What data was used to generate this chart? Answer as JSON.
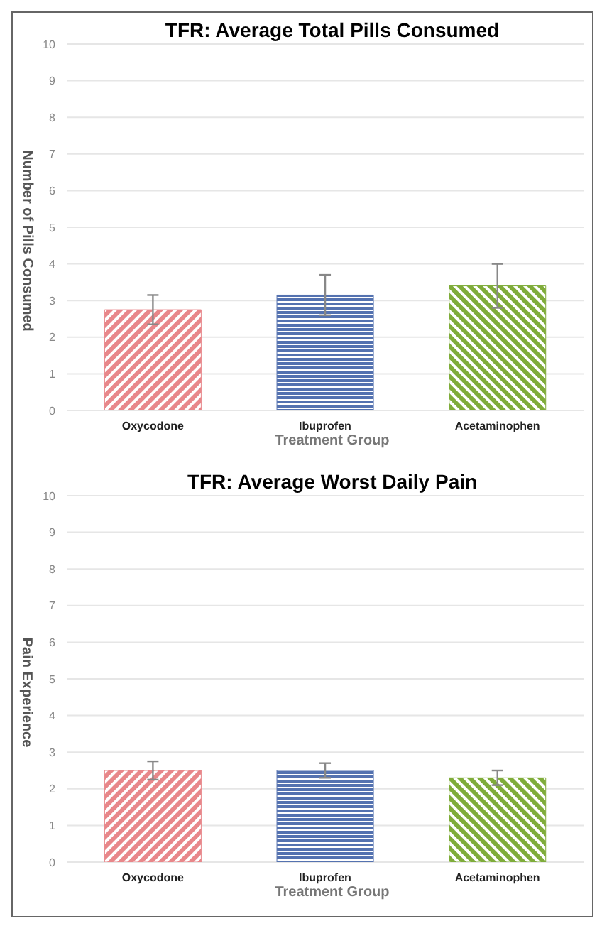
{
  "chart_data": [
    {
      "type": "bar",
      "title": "TFR: Average Total Pills Consumed",
      "xlabel": "Treatment Group",
      "ylabel": "Number of Pills Consumed",
      "categories": [
        "Oxycodone",
        "Ibuprofen",
        "Acetaminophen"
      ],
      "values": [
        2.75,
        3.15,
        3.4
      ],
      "errors": [
        0.4,
        0.55,
        0.6
      ],
      "colors": [
        "#e8878a",
        "#5472b0",
        "#7fac3a"
      ],
      "ylim": [
        0,
        10
      ],
      "yticks": [
        0,
        1,
        2,
        3,
        4,
        5,
        6,
        7,
        8,
        9,
        10
      ],
      "grid": "y",
      "legend": false
    },
    {
      "type": "bar",
      "title": "TFR: Average Worst Daily Pain",
      "xlabel": "Treatment Group",
      "ylabel": "Pain Experience",
      "categories": [
        "Oxycodone",
        "Ibuprofen",
        "Acetaminophen"
      ],
      "values": [
        2.5,
        2.5,
        2.3
      ],
      "errors": [
        0.25,
        0.2,
        0.2
      ],
      "colors": [
        "#e8878a",
        "#5472b0",
        "#7fac3a"
      ],
      "ylim": [
        0,
        10
      ],
      "yticks": [
        0,
        1,
        2,
        3,
        4,
        5,
        6,
        7,
        8,
        9,
        10
      ],
      "grid": "y",
      "legend": false
    }
  ]
}
